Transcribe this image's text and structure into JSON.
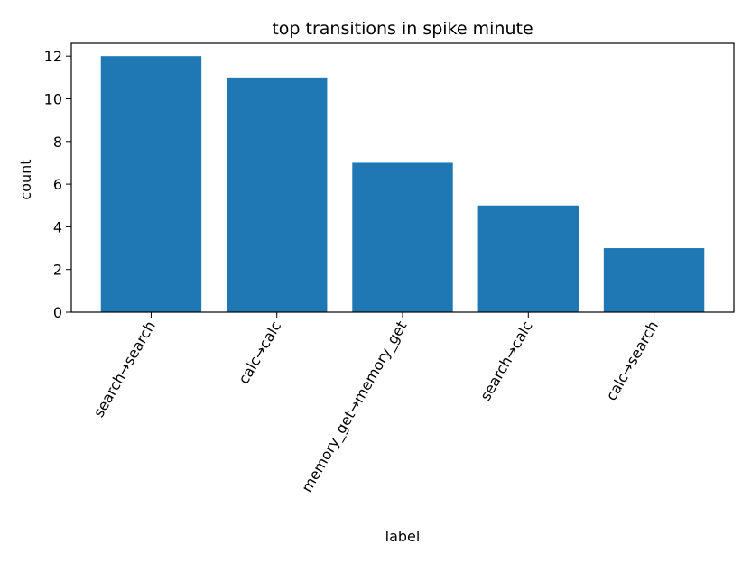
{
  "chart_data": {
    "type": "bar",
    "title": "top transitions in spike minute",
    "xlabel": "label",
    "ylabel": "count",
    "categories": [
      "search→search",
      "calc→calc",
      "memory_get→memory_get",
      "search→calc",
      "calc→search"
    ],
    "values": [
      12,
      11,
      7,
      5,
      3
    ],
    "yticks": [
      0,
      2,
      4,
      6,
      8,
      10,
      12
    ],
    "ylim": [
      0,
      12.6
    ],
    "bar_color": "#1f77b4",
    "grid": false,
    "legend": "none"
  }
}
